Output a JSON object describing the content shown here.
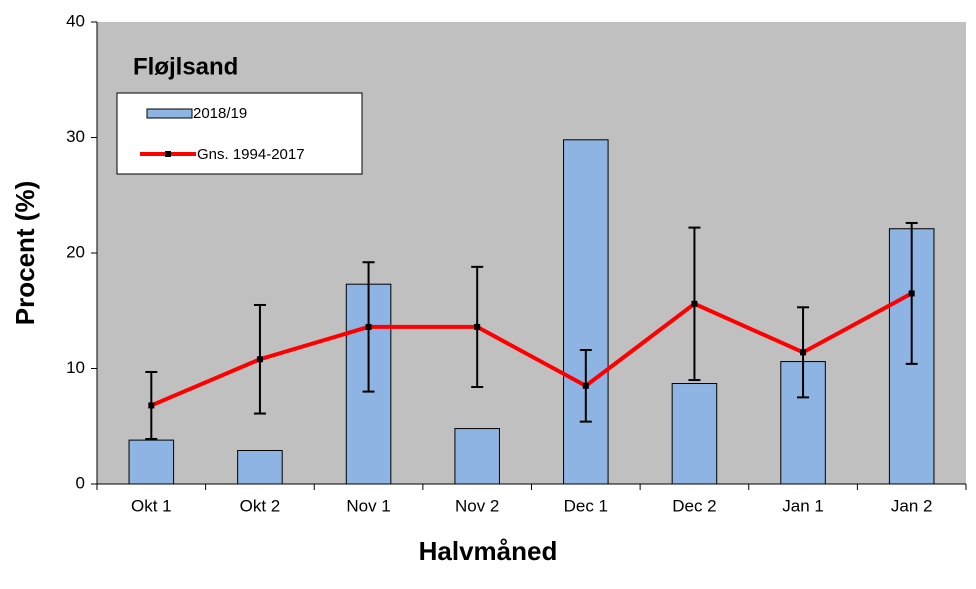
{
  "chart_data": {
    "type": "bar-line-error",
    "title": "Fløjlsand",
    "xlabel": "Halvmåned",
    "ylabel": "Procent (%)",
    "categories": [
      "Okt 1",
      "Okt 2",
      "Nov 1",
      "Nov 2",
      "Dec 1",
      "Dec 2",
      "Jan 1",
      "Jan 2"
    ],
    "series": [
      {
        "name": "2018/19",
        "kind": "bar",
        "color": "#8db4e2",
        "values": [
          3.8,
          2.9,
          17.3,
          4.8,
          29.8,
          8.7,
          10.6,
          22.1
        ]
      },
      {
        "name": "Gns. 1994-2017",
        "kind": "line",
        "color": "#ff0000",
        "values": [
          6.8,
          10.8,
          13.6,
          13.6,
          8.5,
          15.6,
          11.4,
          16.5
        ],
        "errors": [
          2.9,
          4.7,
          5.6,
          5.2,
          3.1,
          6.6,
          3.9,
          6.1
        ]
      }
    ],
    "ylim": [
      0,
      40
    ],
    "yticks": [
      0,
      10,
      20,
      30,
      40
    ],
    "legend": "upper left"
  }
}
